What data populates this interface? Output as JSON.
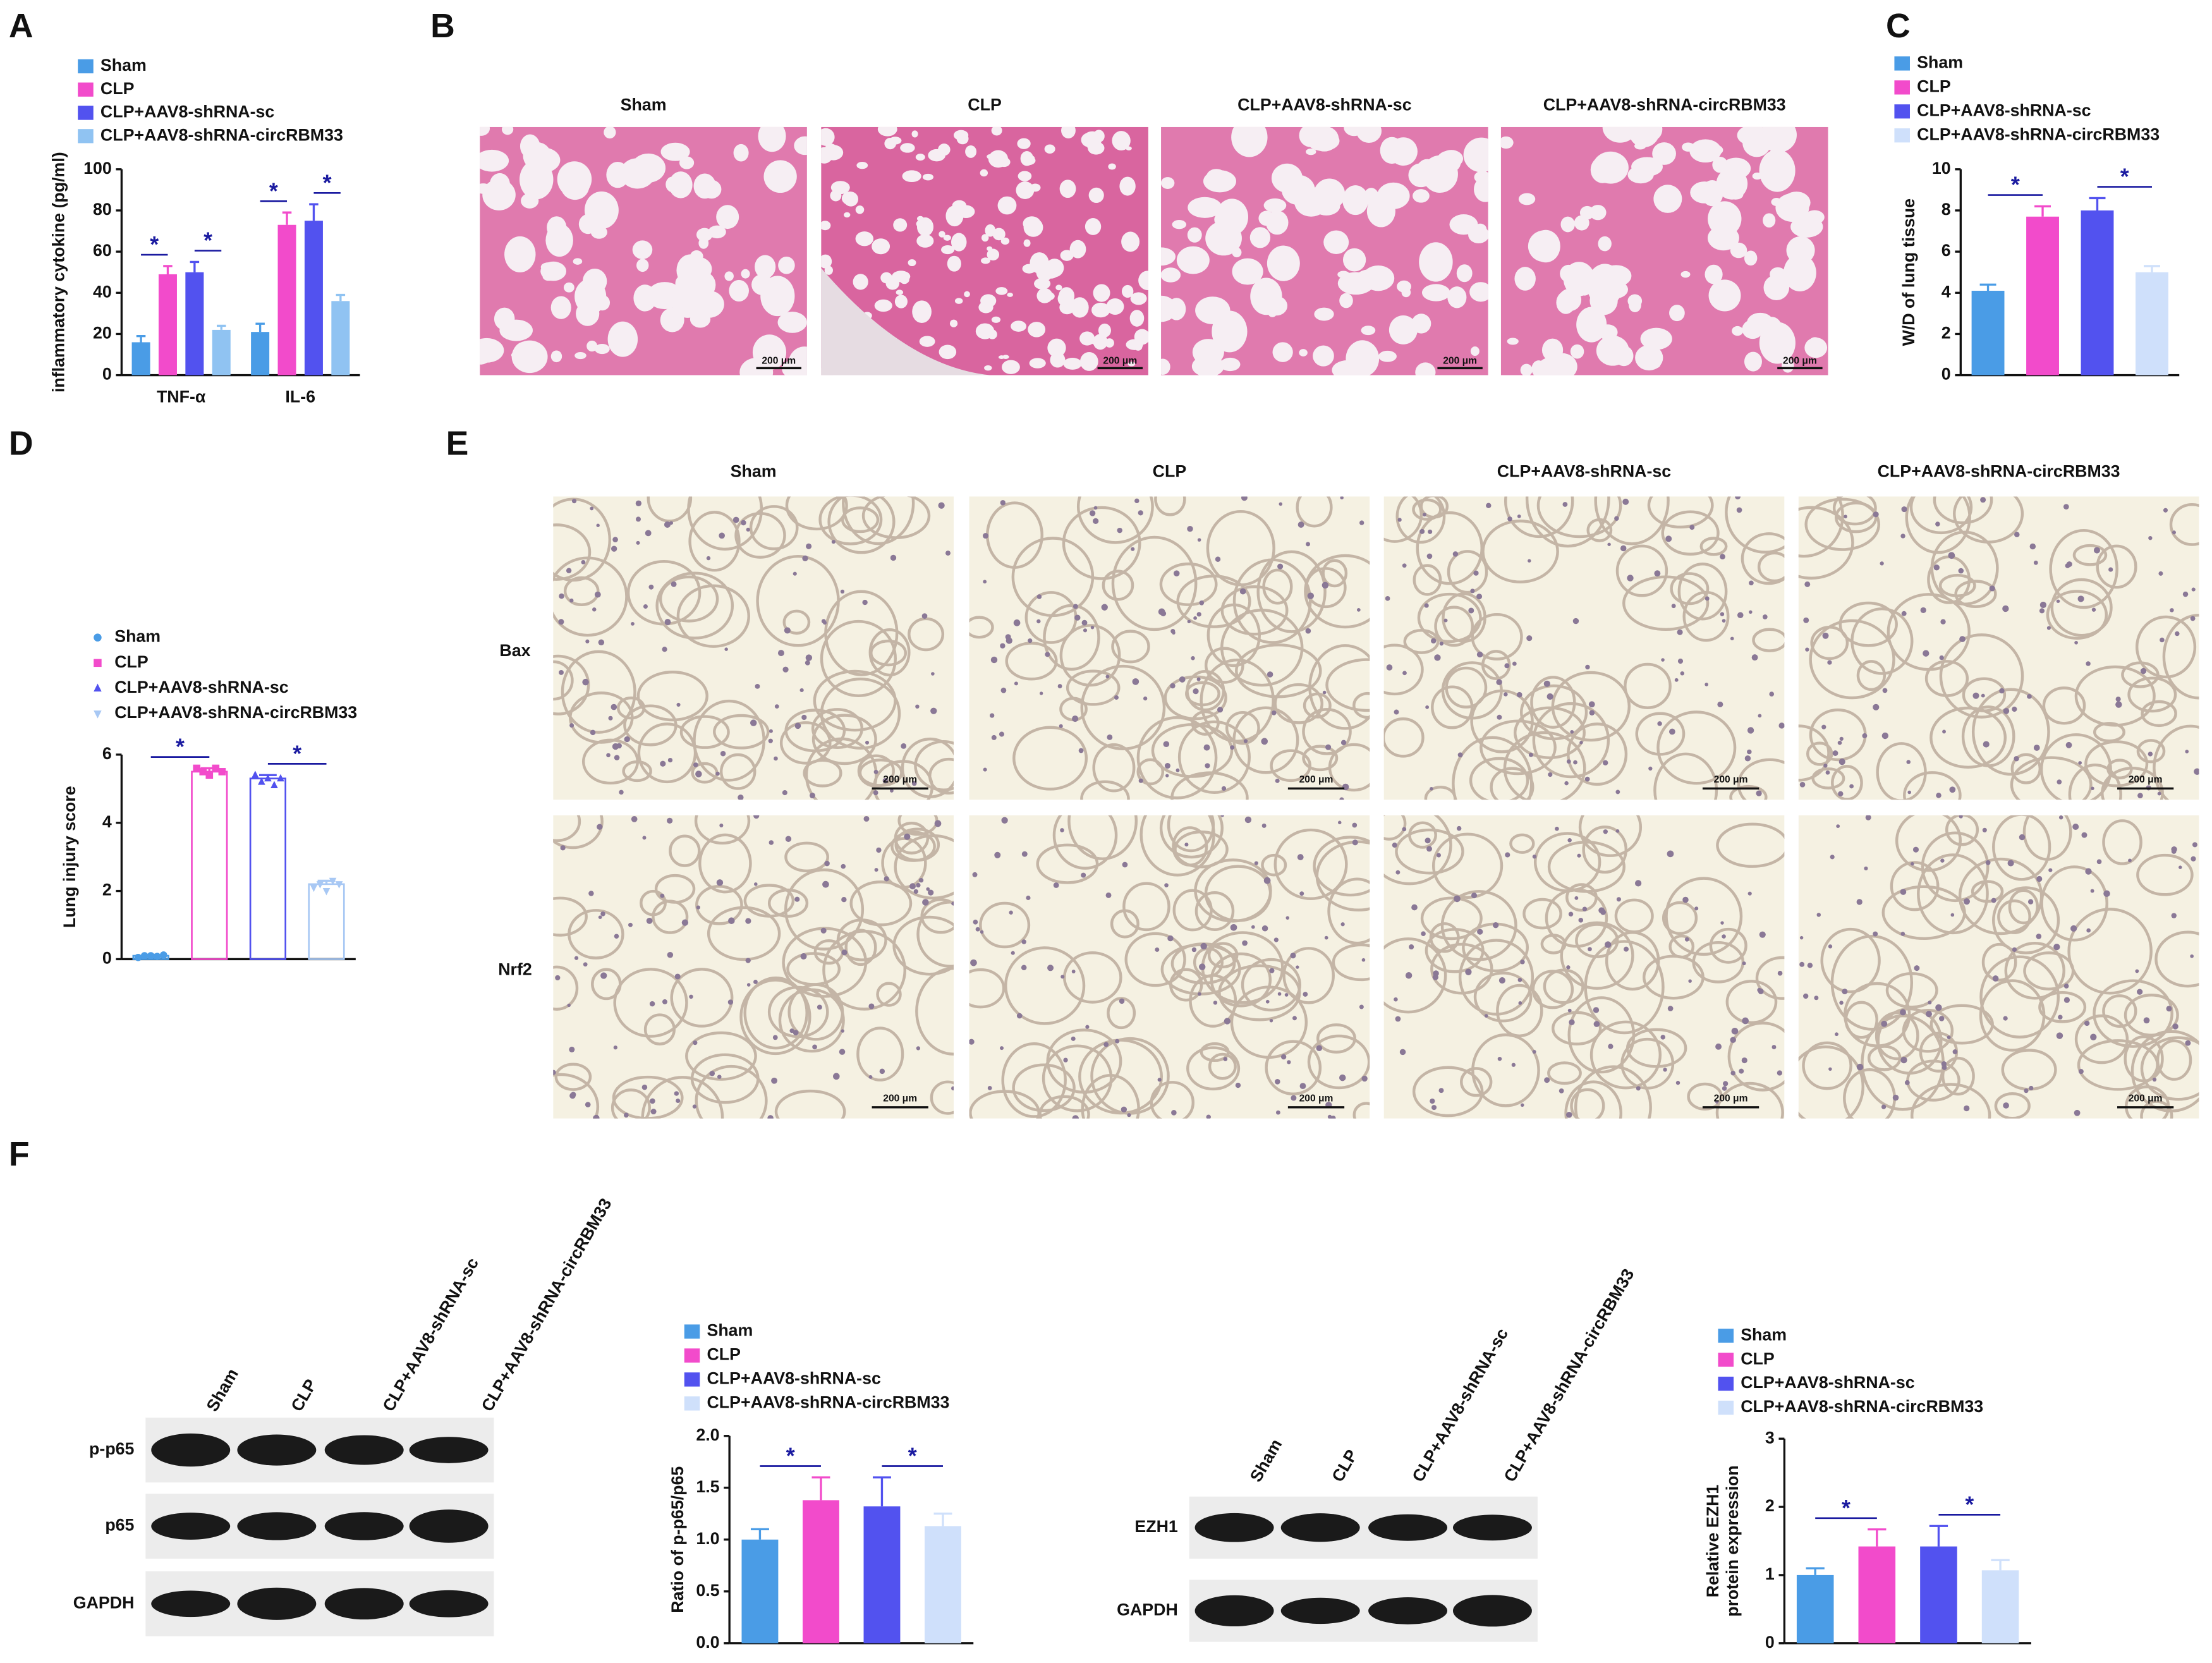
{
  "panel_labels": [
    "A",
    "B",
    "C",
    "D",
    "E",
    "F"
  ],
  "he_panel": {
    "columns": [
      "Sham",
      "CLP",
      "CLP+AAV8-shRNA-sc",
      "CLP+AAV8-shRNA-circRBM33"
    ],
    "scale_bar": "200 μm"
  },
  "ihc_panel": {
    "columns": [
      "Sham",
      "CLP",
      "CLP+AAV8-shRNA-sc",
      "CLP+AAV8-shRNA-circRBM33"
    ],
    "rows": [
      "Bax",
      "Nrf2"
    ],
    "scale_bar": "200 μm"
  },
  "blots": [
    {
      "lanes": [
        "Sham",
        "CLP",
        "CLP+AAV8-shRNA-sc",
        "CLP+AAV8-shRNA-circRBM33"
      ],
      "rows": [
        "p-p65",
        "p65",
        "GAPDH"
      ]
    },
    {
      "lanes": [
        "Sham",
        "CLP",
        "CLP+AAV8-shRNA-sc",
        "CLP+AAV8-shRNA-circRBM33"
      ],
      "rows": [
        "EZH1",
        "GAPDH"
      ]
    }
  ],
  "chart_data": [
    {
      "type": "bar",
      "ylabel": "inflammatory cytokine (pg/ml)",
      "categories": [
        "TNF-α",
        "IL-6"
      ],
      "series": [
        {
          "name": "Sham",
          "color": "#4a9ce6",
          "values": [
            16,
            21
          ],
          "errors": [
            3,
            4
          ]
        },
        {
          "name": "CLP",
          "color": "#f24bcb",
          "values": [
            49,
            73
          ],
          "errors": [
            4,
            6
          ]
        },
        {
          "name": "CLP+AAV8-shRNA-sc",
          "color": "#5252ef",
          "values": [
            50,
            75
          ],
          "errors": [
            5,
            8
          ]
        },
        {
          "name": "CLP+AAV8-shRNA-circRBM33",
          "color": "#90c3f2",
          "values": [
            22,
            36
          ],
          "errors": [
            2,
            3
          ]
        }
      ],
      "ylim": [
        0,
        100
      ],
      "yticks": [
        0,
        20,
        40,
        60,
        80,
        100
      ],
      "annotations": [
        "*",
        "*",
        "*",
        "*"
      ]
    },
    {
      "type": "bar",
      "ylabel": "W/D of lung tissue",
      "categories": [
        "Sham",
        "CLP",
        "CLP+AAV8-shRNA-sc",
        "CLP+AAV8-shRNA-circRBM33"
      ],
      "values": [
        4.1,
        7.7,
        8.0,
        5.0
      ],
      "errors": [
        0.3,
        0.5,
        0.6,
        0.3
      ],
      "colors": [
        "#4a9ce6",
        "#f24bcb",
        "#5252ef",
        "#cfe0fb"
      ],
      "ylim": [
        0,
        10
      ],
      "yticks": [
        0,
        2,
        4,
        6,
        8,
        10
      ],
      "annotations": [
        "*",
        "*"
      ]
    },
    {
      "type": "bar",
      "ylabel": "Lung injury score",
      "hollow": true,
      "categories": [
        "Sham",
        "CLP",
        "CLP+AAV8-shRNA-sc",
        "CLP+AAV8-shRNA-circRBM33"
      ],
      "values": [
        0.1,
        5.5,
        5.3,
        2.2
      ],
      "errors": [
        0.03,
        0.1,
        0.1,
        0.1
      ],
      "points": [
        [
          0.05,
          0.1,
          0.1,
          0.08,
          0.12
        ],
        [
          5.6,
          5.5,
          5.4,
          5.6,
          5.5
        ],
        [
          5.4,
          5.2,
          5.3,
          5.1,
          5.3
        ],
        [
          2.1,
          2.2,
          2.0,
          2.3,
          2.2
        ]
      ],
      "markers": [
        "circle",
        "square",
        "triangle",
        "triangle-down"
      ],
      "colors": [
        "#4a9ce6",
        "#f24bcb",
        "#5252ef",
        "#a8c8f4"
      ],
      "ylim": [
        0,
        6
      ],
      "yticks": [
        0,
        2,
        4,
        6
      ],
      "annotations": [
        "*",
        "*"
      ]
    },
    {
      "type": "bar",
      "ylabel": "Ratio of p-p65/p65",
      "categories": [
        "Sham",
        "CLP",
        "CLP+AAV8-shRNA-sc",
        "CLP+AAV8-shRNA-circRBM33"
      ],
      "values": [
        1.0,
        1.38,
        1.32,
        1.13
      ],
      "errors": [
        0.1,
        0.22,
        0.28,
        0.12
      ],
      "colors": [
        "#4a9ce6",
        "#f24bcb",
        "#5252ef",
        "#cfe0fb"
      ],
      "ylim": [
        0,
        2
      ],
      "yticks": [
        {
          "value": 0,
          "label": "0.0"
        },
        0.5,
        {
          "value": 1,
          "label": "1.0"
        },
        1.5,
        {
          "value": 2,
          "label": "2.0"
        }
      ],
      "annotations": [
        "*",
        "*"
      ]
    },
    {
      "type": "bar",
      "ylabel": [
        "Relative EZH1",
        "protein expression"
      ],
      "categories": [
        "Sham",
        "CLP",
        "CLP+AAV8-shRNA-sc",
        "CLP+AAV8-shRNA-circRBM33"
      ],
      "values": [
        1.0,
        1.42,
        1.42,
        1.07
      ],
      "errors": [
        0.1,
        0.25,
        0.3,
        0.15
      ],
      "colors": [
        "#4a9ce6",
        "#f24bcb",
        "#5252ef",
        "#cfe0fb"
      ],
      "ylim": [
        0,
        3
      ],
      "yticks": [
        0,
        1,
        2,
        3
      ],
      "annotations": [
        "*",
        "*"
      ]
    }
  ]
}
